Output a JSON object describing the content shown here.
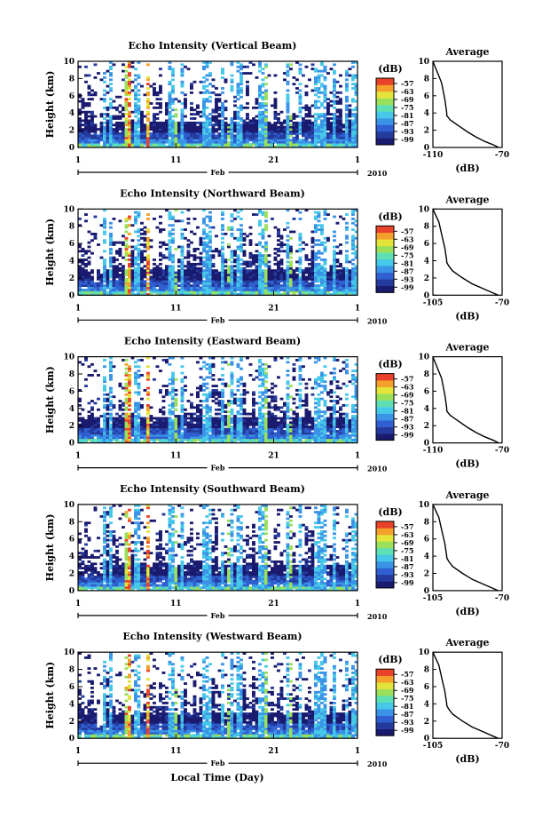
{
  "colors": {
    "scale": [
      "#1a1a6e",
      "#243a9c",
      "#2f5fd0",
      "#3a93e6",
      "#46c8e8",
      "#5ee0b4",
      "#9ae05a",
      "#e4e43a",
      "#f4a02a",
      "#e8422a"
    ],
    "axis": "#000000",
    "profile_line": "#000000"
  },
  "x_axis_label": "Local Time (Day)",
  "chart_data": [
    {
      "type": "heatmap",
      "title": "Echo Intensity (Vertical Beam)",
      "ylabel": "Height (km)",
      "ylim": [
        0,
        10
      ],
      "yticks": [
        "0",
        "2",
        "4",
        "6",
        "8",
        "10"
      ],
      "xticks": [
        "1",
        "11",
        "21",
        "1"
      ],
      "month": "Feb",
      "year": "2010",
      "colorbar": {
        "unit": "(dB)",
        "ticks": [
          "-57",
          "-63",
          "-69",
          "-75",
          "-81",
          "-87",
          "-93",
          "-99"
        ]
      },
      "average": {
        "title": "Average",
        "xlabel": "(dB)",
        "xlim": [
          -110,
          -70
        ],
        "xticks": [
          "-110",
          "-70"
        ],
        "yticks": [
          "0",
          "2",
          "4",
          "6",
          "8",
          "10"
        ],
        "points": [
          [
            -72,
            0.0
          ],
          [
            -75,
            0.3
          ],
          [
            -80,
            0.7
          ],
          [
            -85,
            1.2
          ],
          [
            -90,
            1.8
          ],
          [
            -95,
            2.5
          ],
          [
            -100,
            3.2
          ],
          [
            -102,
            3.7
          ],
          [
            -102,
            4.0
          ],
          [
            -103,
            5.5
          ],
          [
            -104,
            6.5
          ],
          [
            -105,
            7.5
          ],
          [
            -107,
            8.5
          ],
          [
            -109,
            9.5
          ],
          [
            -110,
            10.0
          ]
        ]
      }
    },
    {
      "type": "heatmap",
      "title": "Echo Intensity (Northward Beam)",
      "ylabel": "Height (km)",
      "ylim": [
        0,
        10
      ],
      "yticks": [
        "0",
        "2",
        "4",
        "6",
        "8",
        "10"
      ],
      "xticks": [
        "1",
        "11",
        "21",
        "1"
      ],
      "month": "Feb",
      "year": "2010",
      "colorbar": {
        "unit": "(dB)",
        "ticks": [
          "-57",
          "-63",
          "-69",
          "-75",
          "-81",
          "-87",
          "-93",
          "-99"
        ]
      },
      "average": {
        "title": "Average",
        "xlabel": "(dB)",
        "xlim": [
          -105,
          -70
        ],
        "xticks": [
          "-105",
          "-70"
        ],
        "yticks": [
          "0",
          "2",
          "4",
          "6",
          "8",
          "10"
        ],
        "points": [
          [
            -72,
            0.0
          ],
          [
            -75,
            0.3
          ],
          [
            -80,
            0.8
          ],
          [
            -85,
            1.3
          ],
          [
            -90,
            2.0
          ],
          [
            -95,
            2.8
          ],
          [
            -97,
            3.4
          ],
          [
            -98,
            3.8
          ],
          [
            -98,
            4.0
          ],
          [
            -99,
            5.5
          ],
          [
            -100,
            6.5
          ],
          [
            -101,
            7.5
          ],
          [
            -102,
            8.5
          ],
          [
            -104,
            9.5
          ],
          [
            -105,
            10.0
          ]
        ]
      }
    },
    {
      "type": "heatmap",
      "title": "Echo Intensity (Eastward Beam)",
      "ylabel": "Height (km)",
      "ylim": [
        0,
        10
      ],
      "yticks": [
        "0",
        "2",
        "4",
        "6",
        "8",
        "10"
      ],
      "xticks": [
        "1",
        "11",
        "21",
        "1"
      ],
      "month": "Feb",
      "year": "2010",
      "colorbar": {
        "unit": "(dB)",
        "ticks": [
          "-57",
          "-63",
          "-69",
          "-75",
          "-81",
          "-87",
          "-93",
          "-99"
        ]
      },
      "average": {
        "title": "Average",
        "xlabel": "(dB)",
        "xlim": [
          -110,
          -70
        ],
        "xticks": [
          "-110",
          "-70"
        ],
        "yticks": [
          "0",
          "2",
          "4",
          "6",
          "8",
          "10"
        ],
        "points": [
          [
            -72,
            0.0
          ],
          [
            -75,
            0.3
          ],
          [
            -80,
            0.7
          ],
          [
            -85,
            1.2
          ],
          [
            -90,
            1.8
          ],
          [
            -95,
            2.5
          ],
          [
            -100,
            3.2
          ],
          [
            -102,
            3.7
          ],
          [
            -102,
            4.0
          ],
          [
            -103,
            5.5
          ],
          [
            -104,
            6.5
          ],
          [
            -105,
            7.5
          ],
          [
            -107,
            8.5
          ],
          [
            -109,
            9.5
          ],
          [
            -110,
            10.0
          ]
        ]
      }
    },
    {
      "type": "heatmap",
      "title": "Echo Intensity (Southward Beam)",
      "ylabel": "Height (km)",
      "ylim": [
        0,
        10
      ],
      "yticks": [
        "0",
        "2",
        "4",
        "6",
        "8",
        "10"
      ],
      "xticks": [
        "1",
        "11",
        "21",
        "1"
      ],
      "month": "Feb",
      "year": "2010",
      "colorbar": {
        "unit": "(dB)",
        "ticks": [
          "-57",
          "-63",
          "-69",
          "-75",
          "-81",
          "-87",
          "-93",
          "-99"
        ]
      },
      "average": {
        "title": "Average",
        "xlabel": "(dB)",
        "xlim": [
          -105,
          -70
        ],
        "xticks": [
          "-105",
          "-70"
        ],
        "yticks": [
          "0",
          "2",
          "4",
          "6",
          "8",
          "10"
        ],
        "points": [
          [
            -72,
            0.0
          ],
          [
            -75,
            0.3
          ],
          [
            -80,
            0.8
          ],
          [
            -85,
            1.3
          ],
          [
            -90,
            2.0
          ],
          [
            -95,
            2.8
          ],
          [
            -97,
            3.4
          ],
          [
            -98,
            3.8
          ],
          [
            -98,
            4.0
          ],
          [
            -99,
            5.5
          ],
          [
            -100,
            6.5
          ],
          [
            -101,
            7.5
          ],
          [
            -102,
            8.5
          ],
          [
            -104,
            9.5
          ],
          [
            -105,
            10.0
          ]
        ]
      }
    },
    {
      "type": "heatmap",
      "title": "Echo Intensity (Westward Beam)",
      "ylabel": "Height (km)",
      "ylim": [
        0,
        10
      ],
      "yticks": [
        "0",
        "2",
        "4",
        "6",
        "8",
        "10"
      ],
      "xticks": [
        "1",
        "11",
        "21",
        "1"
      ],
      "month": "Feb",
      "year": "2010",
      "colorbar": {
        "unit": "(dB)",
        "ticks": [
          "-57",
          "-63",
          "-69",
          "-75",
          "-81",
          "-87",
          "-93",
          "-99"
        ]
      },
      "average": {
        "title": "Average",
        "xlabel": "(dB)",
        "xlim": [
          -105,
          -70
        ],
        "xticks": [
          "-105",
          "-70"
        ],
        "yticks": [
          "0",
          "2",
          "4",
          "6",
          "8",
          "10"
        ],
        "points": [
          [
            -72,
            0.0
          ],
          [
            -75,
            0.3
          ],
          [
            -80,
            0.8
          ],
          [
            -85,
            1.3
          ],
          [
            -90,
            2.0
          ],
          [
            -95,
            2.8
          ],
          [
            -97,
            3.4
          ],
          [
            -98,
            3.8
          ],
          [
            -98,
            4.0
          ],
          [
            -99,
            5.5
          ],
          [
            -100,
            6.5
          ],
          [
            -101,
            7.5
          ],
          [
            -102,
            8.5
          ],
          [
            -104,
            9.5
          ],
          [
            -105,
            10.0
          ]
        ]
      }
    }
  ]
}
